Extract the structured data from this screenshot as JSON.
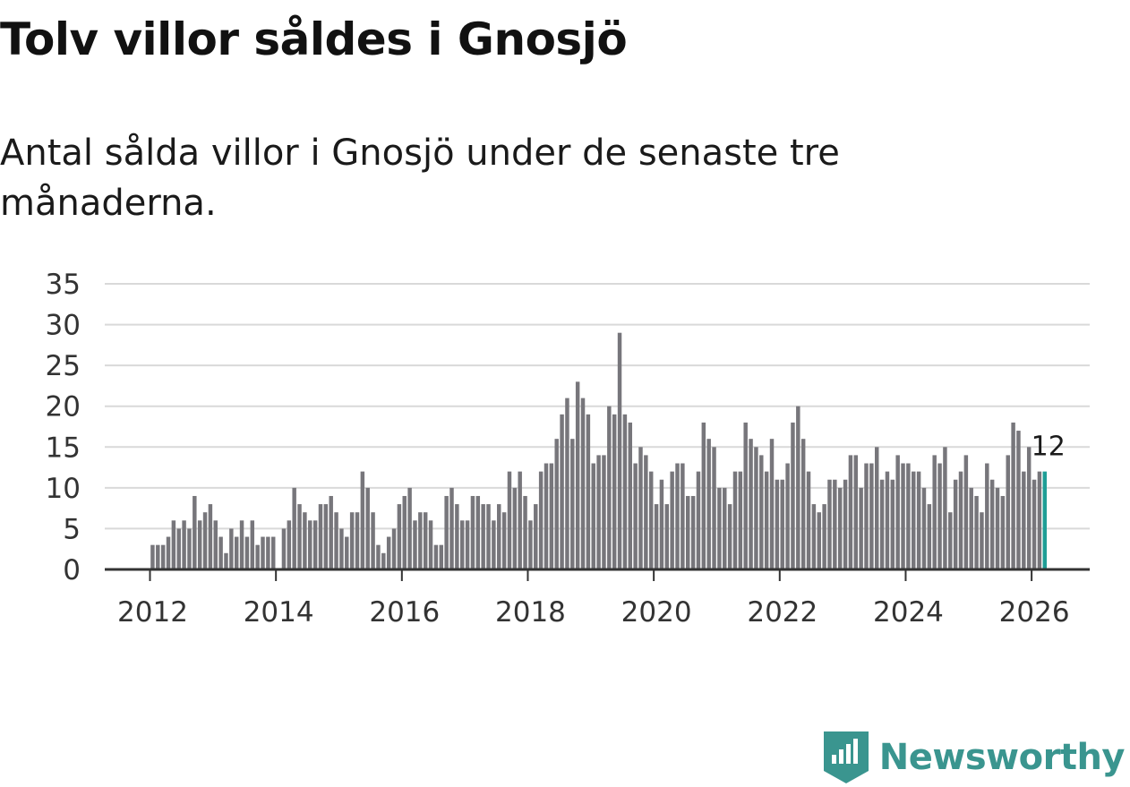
{
  "title": "Tolv villor såldes i Gnosjö",
  "subtitle": "Antal sålda villor i Gnosjö under de senaste tre månaderna.",
  "brand": {
    "name": "Newsworthy",
    "color": "#3a958f"
  },
  "colors": {
    "bar": "#77767b",
    "highlight": "#1e9e96",
    "grid": "#d9d9d9",
    "axis": "#333333"
  },
  "chart_data": {
    "type": "bar",
    "title": "Tolv villor såldes i Gnosjö",
    "xlabel": "",
    "ylabel": "",
    "ylim": [
      0,
      35
    ],
    "yticks": [
      0,
      5,
      10,
      15,
      20,
      25,
      30,
      35
    ],
    "xticks": [
      "2012",
      "2014",
      "2016",
      "2018",
      "2020",
      "2022",
      "2024",
      "2026"
    ],
    "start": "2012-01",
    "frequency": "monthly",
    "highlight_label": "12",
    "values": [
      3,
      3,
      3,
      4,
      6,
      5,
      6,
      5,
      9,
      6,
      7,
      8,
      6,
      4,
      2,
      5,
      4,
      6,
      4,
      6,
      3,
      4,
      4,
      4,
      0,
      5,
      6,
      10,
      8,
      7,
      6,
      6,
      8,
      8,
      9,
      7,
      5,
      4,
      7,
      7,
      12,
      10,
      7,
      3,
      2,
      4,
      5,
      8,
      9,
      10,
      6,
      7,
      7,
      6,
      3,
      3,
      9,
      10,
      8,
      6,
      6,
      9,
      9,
      8,
      8,
      6,
      8,
      7,
      12,
      10,
      12,
      9,
      6,
      8,
      12,
      13,
      13,
      16,
      19,
      21,
      16,
      23,
      21,
      19,
      13,
      14,
      14,
      20,
      19,
      29,
      19,
      18,
      13,
      15,
      14,
      12,
      8,
      11,
      8,
      12,
      13,
      13,
      9,
      9,
      12,
      18,
      16,
      15,
      10,
      10,
      8,
      12,
      12,
      18,
      16,
      15,
      14,
      12,
      16,
      11,
      11,
      13,
      18,
      20,
      16,
      12,
      8,
      7,
      8,
      11,
      11,
      10,
      11,
      14,
      14,
      10,
      13,
      13,
      15,
      11,
      12,
      11,
      14,
      13,
      13,
      12,
      12,
      10,
      8,
      14,
      13,
      15,
      7,
      11,
      12,
      14,
      10,
      9,
      7,
      13,
      11,
      10,
      9,
      14,
      18,
      17,
      12,
      15,
      11,
      12,
      12
    ]
  }
}
